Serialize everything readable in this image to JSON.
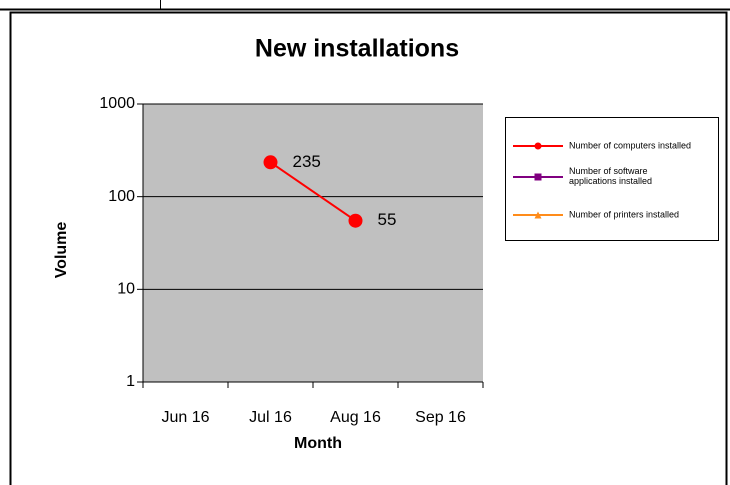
{
  "chart_data": {
    "type": "line",
    "title": "New installations",
    "x_label": "Month",
    "y_label": "Volume",
    "categories": [
      "Jun 16",
      "Jul 16",
      "Aug 16",
      "Sep 16"
    ],
    "series": [
      {
        "name": "Number of computers installed",
        "color": "#ff0000",
        "marker": "circle",
        "values": [
          null,
          235,
          55,
          null
        ]
      },
      {
        "name": "Number of software applications installed",
        "color": "#800080",
        "marker": "square",
        "values": [
          null,
          null,
          null,
          null
        ]
      },
      {
        "name": "Number of printers installed",
        "color": "#ff8c1a",
        "marker": "triangle",
        "values": [
          null,
          null,
          null,
          null
        ]
      }
    ],
    "ylim": [
      1,
      1000
    ],
    "yticks": [
      1,
      10,
      100,
      1000
    ],
    "log_scale": true,
    "grid": true,
    "legend": "right"
  }
}
